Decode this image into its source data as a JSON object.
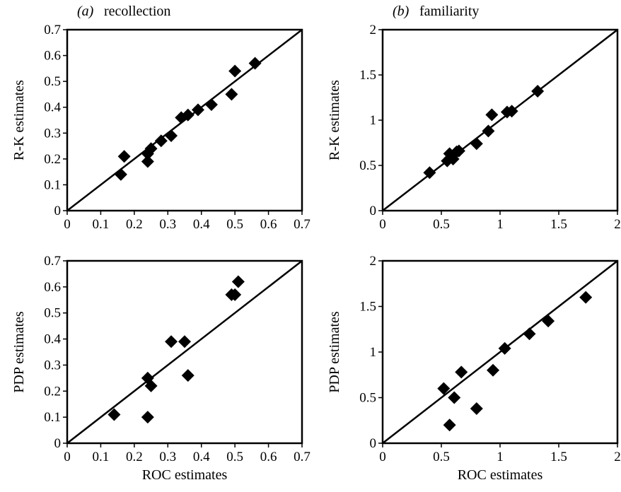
{
  "chart_data": [
    {
      "type": "scatter",
      "panel_label": "(a)",
      "title": "recollection",
      "xlabel": "",
      "ylabel": "R-K estimates",
      "xlim": [
        0,
        0.7
      ],
      "ylim": [
        0,
        0.7
      ],
      "xticks": [
        "0",
        "0.1",
        "0.2",
        "0.3",
        "0.4",
        "0.5",
        "0.6",
        "0.7"
      ],
      "yticks": [
        "0",
        "0.1",
        "0.2",
        "0.3",
        "0.4",
        "0.5",
        "0.6",
        "0.7"
      ],
      "reference_line": "y = x",
      "marker": "diamond",
      "points": [
        {
          "x": 0.16,
          "y": 0.14
        },
        {
          "x": 0.17,
          "y": 0.21
        },
        {
          "x": 0.24,
          "y": 0.19
        },
        {
          "x": 0.24,
          "y": 0.22
        },
        {
          "x": 0.25,
          "y": 0.24
        },
        {
          "x": 0.28,
          "y": 0.27
        },
        {
          "x": 0.31,
          "y": 0.29
        },
        {
          "x": 0.34,
          "y": 0.36
        },
        {
          "x": 0.36,
          "y": 0.37
        },
        {
          "x": 0.39,
          "y": 0.39
        },
        {
          "x": 0.43,
          "y": 0.41
        },
        {
          "x": 0.49,
          "y": 0.45
        },
        {
          "x": 0.5,
          "y": 0.54
        },
        {
          "x": 0.56,
          "y": 0.57
        }
      ]
    },
    {
      "type": "scatter",
      "panel_label": "(b)",
      "title": "familiarity",
      "xlabel": "",
      "ylabel": "R-K estimates",
      "xlim": [
        0,
        2
      ],
      "ylim": [
        0,
        2
      ],
      "xticks": [
        "0",
        "0.5",
        "1",
        "1.5",
        "2"
      ],
      "yticks": [
        "0",
        "0.5",
        "1",
        "1.5",
        "2"
      ],
      "reference_line": "y = x",
      "marker": "diamond",
      "points": [
        {
          "x": 0.4,
          "y": 0.42
        },
        {
          "x": 0.55,
          "y": 0.55
        },
        {
          "x": 0.57,
          "y": 0.63
        },
        {
          "x": 0.6,
          "y": 0.57
        },
        {
          "x": 0.63,
          "y": 0.65
        },
        {
          "x": 0.65,
          "y": 0.66
        },
        {
          "x": 0.8,
          "y": 0.74
        },
        {
          "x": 0.9,
          "y": 0.88
        },
        {
          "x": 0.93,
          "y": 1.06
        },
        {
          "x": 1.06,
          "y": 1.09
        },
        {
          "x": 1.1,
          "y": 1.1
        },
        {
          "x": 1.32,
          "y": 1.32
        }
      ]
    },
    {
      "type": "scatter",
      "panel_label": "",
      "title": "",
      "xlabel": "ROC estimates",
      "ylabel": "PDP estimates",
      "xlim": [
        0,
        0.7
      ],
      "ylim": [
        0,
        0.7
      ],
      "xticks": [
        "0",
        "0.1",
        "0.2",
        "0.3",
        "0.4",
        "0.5",
        "0.6",
        "0.7"
      ],
      "yticks": [
        "0",
        "0.1",
        "0.2",
        "0.3",
        "0.4",
        "0.5",
        "0.6",
        "0.7"
      ],
      "reference_line": "y = x",
      "marker": "diamond",
      "points": [
        {
          "x": 0.14,
          "y": 0.11
        },
        {
          "x": 0.24,
          "y": 0.1
        },
        {
          "x": 0.24,
          "y": 0.25
        },
        {
          "x": 0.25,
          "y": 0.22
        },
        {
          "x": 0.31,
          "y": 0.39
        },
        {
          "x": 0.35,
          "y": 0.39
        },
        {
          "x": 0.36,
          "y": 0.26
        },
        {
          "x": 0.49,
          "y": 0.57
        },
        {
          "x": 0.5,
          "y": 0.57
        },
        {
          "x": 0.51,
          "y": 0.62
        }
      ]
    },
    {
      "type": "scatter",
      "panel_label": "",
      "title": "",
      "xlabel": "ROC estimates",
      "ylabel": "PDP estimates",
      "xlim": [
        0,
        2
      ],
      "ylim": [
        0,
        2
      ],
      "xticks": [
        "0",
        "0.5",
        "1",
        "1.5",
        "2"
      ],
      "yticks": [
        "0",
        "0.5",
        "1",
        "1.5",
        "2"
      ],
      "reference_line": "y = x",
      "marker": "diamond",
      "points": [
        {
          "x": 0.52,
          "y": 0.6
        },
        {
          "x": 0.57,
          "y": 0.2
        },
        {
          "x": 0.61,
          "y": 0.5
        },
        {
          "x": 0.67,
          "y": 0.78
        },
        {
          "x": 0.8,
          "y": 0.38
        },
        {
          "x": 0.94,
          "y": 0.8
        },
        {
          "x": 1.04,
          "y": 1.04
        },
        {
          "x": 1.25,
          "y": 1.2
        },
        {
          "x": 1.41,
          "y": 1.34
        },
        {
          "x": 1.73,
          "y": 1.6
        }
      ]
    }
  ]
}
